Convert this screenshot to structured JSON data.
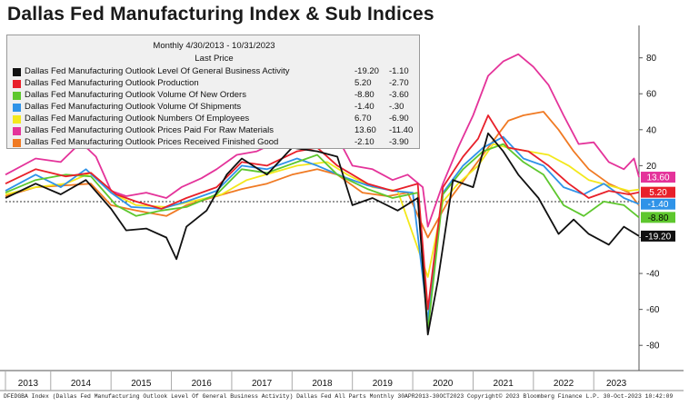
{
  "title": "Dallas Fed Manufacturing Index & Sub Indices",
  "legend": {
    "period": "Monthly 4/30/2013 - 10/31/2023",
    "last_price_label": "Last Price",
    "items": [
      {
        "name": "Dallas Fed Manufacturing Outlook Level Of General Business Activity",
        "v1": "-19.20",
        "v2": "-1.10",
        "color": "#111111"
      },
      {
        "name": "Dallas Fed Manufacturing Outlook Production",
        "v1": "5.20",
        "v2": "-2.70",
        "color": "#e8202a"
      },
      {
        "name": "Dallas Fed Manufacturing Outlook Volume Of New Orders",
        "v1": "-8.80",
        "v2": "-3.60",
        "color": "#5ec72e"
      },
      {
        "name": "Dallas Fed Manufacturing Outlook Volume Of Shipments",
        "v1": "-1.40",
        "v2": "-.30",
        "color": "#2f93e8"
      },
      {
        "name": "Dallas Fed Manufacturing Outlook Numbers Of Employees",
        "v1": "6.70",
        "v2": "-6.90",
        "color": "#f3e81c"
      },
      {
        "name": "Dallas Fed Manufacturing Outlook Prices Paid For Raw Materials",
        "v1": "13.60",
        "v2": "-11.40",
        "color": "#e4339a"
      },
      {
        "name": "Dallas Fed Manufacturing Outlook Prices Received Finished Good",
        "v1": "-2.10",
        "v2": "-3.90",
        "color": "#f07a23"
      }
    ]
  },
  "footer": "DFEDGBA Index (Dallas Fed Manufacturing Outlook Level Of General Business Activity) Dallas Fed All Parts  Monthly 30APR2013-30OCT2023 Copyright© 2023 Bloomberg Finance L.P.  30-Oct-2023 10:42:09",
  "chart_data": {
    "type": "line",
    "title": "Dallas Fed Manufacturing Index & Sub Indices",
    "ylim": [
      -90,
      95
    ],
    "y_ticks": [
      80,
      60,
      40,
      20,
      -20,
      -40,
      -60,
      -80
    ],
    "x_ticks": [
      "2013",
      "2014",
      "2015",
      "2016",
      "2017",
      "2018",
      "2019",
      "2020",
      "2021",
      "2022",
      "2023"
    ],
    "x_start": "2013-04",
    "x_end": "2023-10",
    "reference_line": 0,
    "last_value_tags": [
      {
        "series": "Prices Paid For Raw Materials",
        "value": 13.6,
        "text": "13.60",
        "color": "#e4339a",
        "fg": "#ffffff"
      },
      {
        "series": "Production",
        "value": 5.2,
        "text": "5.20",
        "color": "#e8202a",
        "fg": "#ffffff"
      },
      {
        "series": "Volume Of Shipments",
        "value": -1.4,
        "text": "-1.40",
        "color": "#2f93e8",
        "fg": "#ffffff"
      },
      {
        "series": "Volume Of New Orders",
        "value": -8.8,
        "text": "-8.80",
        "color": "#5ec72e",
        "fg": "#000000"
      },
      {
        "series": "Level Of General Business Activity",
        "value": -19.2,
        "text": "-19.20",
        "color": "#111111",
        "fg": "#ffffff"
      }
    ],
    "series": [
      {
        "name": "Dallas Fed Manufacturing Outlook Prices Paid For Raw Materials",
        "color": "#e4339a",
        "points": [
          [
            "2013-04",
            15
          ],
          [
            "2013-10",
            24
          ],
          [
            "2014-03",
            22
          ],
          [
            "2014-07",
            33
          ],
          [
            "2014-10",
            25
          ],
          [
            "2015-01",
            6
          ],
          [
            "2015-04",
            3
          ],
          [
            "2015-08",
            5
          ],
          [
            "2015-12",
            2
          ],
          [
            "2016-03",
            8
          ],
          [
            "2016-07",
            13
          ],
          [
            "2016-10",
            18
          ],
          [
            "2017-02",
            26
          ],
          [
            "2017-06",
            28
          ],
          [
            "2017-09",
            32
          ],
          [
            "2018-01",
            45
          ],
          [
            "2018-04",
            52
          ],
          [
            "2018-07",
            44
          ],
          [
            "2018-10",
            36
          ],
          [
            "2019-01",
            20
          ],
          [
            "2019-05",
            18
          ],
          [
            "2019-09",
            12
          ],
          [
            "2019-12",
            15
          ],
          [
            "2020-03",
            8
          ],
          [
            "2020-04",
            -14
          ],
          [
            "2020-07",
            10
          ],
          [
            "2020-10",
            30
          ],
          [
            "2021-01",
            48
          ],
          [
            "2021-04",
            70
          ],
          [
            "2021-07",
            78
          ],
          [
            "2021-10",
            82
          ],
          [
            "2022-01",
            75
          ],
          [
            "2022-04",
            65
          ],
          [
            "2022-07",
            48
          ],
          [
            "2022-10",
            32
          ],
          [
            "2023-01",
            33
          ],
          [
            "2023-04",
            22
          ],
          [
            "2023-07",
            18
          ],
          [
            "2023-09",
            24
          ],
          [
            "2023-10",
            13.6
          ]
        ]
      },
      {
        "name": "Dallas Fed Manufacturing Outlook Prices Received Finished Good",
        "color": "#f07a23",
        "points": [
          [
            "2013-04",
            3
          ],
          [
            "2013-10",
            8
          ],
          [
            "2014-04",
            9
          ],
          [
            "2014-09",
            10
          ],
          [
            "2015-01",
            -2
          ],
          [
            "2015-06",
            -5
          ],
          [
            "2015-12",
            -8
          ],
          [
            "2016-04",
            -2
          ],
          [
            "2016-10",
            3
          ],
          [
            "2017-03",
            7
          ],
          [
            "2017-08",
            10
          ],
          [
            "2018-01",
            15
          ],
          [
            "2018-06",
            18
          ],
          [
            "2018-10",
            15
          ],
          [
            "2019-03",
            5
          ],
          [
            "2019-08",
            3
          ],
          [
            "2019-12",
            5
          ],
          [
            "2020-04",
            -20
          ],
          [
            "2020-08",
            0
          ],
          [
            "2020-12",
            15
          ],
          [
            "2021-04",
            30
          ],
          [
            "2021-08",
            45
          ],
          [
            "2021-11",
            48
          ],
          [
            "2022-03",
            50
          ],
          [
            "2022-06",
            40
          ],
          [
            "2022-09",
            28
          ],
          [
            "2022-12",
            18
          ],
          [
            "2023-04",
            10
          ],
          [
            "2023-08",
            5
          ],
          [
            "2023-10",
            -2.1
          ]
        ]
      },
      {
        "name": "Dallas Fed Manufacturing Outlook Numbers Of Employees",
        "color": "#f3e81c",
        "points": [
          [
            "2013-04",
            4
          ],
          [
            "2013-10",
            8
          ],
          [
            "2014-04",
            10
          ],
          [
            "2014-09",
            16
          ],
          [
            "2015-01",
            5
          ],
          [
            "2015-06",
            -2
          ],
          [
            "2015-12",
            -3
          ],
          [
            "2016-05",
            0
          ],
          [
            "2016-11",
            4
          ],
          [
            "2017-04",
            12
          ],
          [
            "2017-09",
            16
          ],
          [
            "2018-02",
            20
          ],
          [
            "2018-08",
            22
          ],
          [
            "2018-12",
            15
          ],
          [
            "2019-05",
            8
          ],
          [
            "2019-10",
            6
          ],
          [
            "2020-04",
            -42
          ],
          [
            "2020-07",
            0
          ],
          [
            "2020-10",
            10
          ],
          [
            "2021-02",
            20
          ],
          [
            "2021-05",
            32
          ],
          [
            "2021-08",
            30
          ],
          [
            "2021-12",
            28
          ],
          [
            "2022-04",
            26
          ],
          [
            "2022-08",
            20
          ],
          [
            "2022-12",
            12
          ],
          [
            "2023-04",
            9
          ],
          [
            "2023-08",
            6
          ],
          [
            "2023-10",
            6.7
          ]
        ]
      },
      {
        "name": "Dallas Fed Manufacturing Outlook Volume Of Shipments",
        "color": "#2f93e8",
        "points": [
          [
            "2013-04",
            6
          ],
          [
            "2013-10",
            15
          ],
          [
            "2014-03",
            8
          ],
          [
            "2014-08",
            18
          ],
          [
            "2015-01",
            5
          ],
          [
            "2015-05",
            -3
          ],
          [
            "2015-11",
            -4
          ],
          [
            "2016-04",
            0
          ],
          [
            "2016-10",
            6
          ],
          [
            "2017-03",
            20
          ],
          [
            "2017-08",
            18
          ],
          [
            "2018-02",
            24
          ],
          [
            "2018-06",
            20
          ],
          [
            "2018-11",
            14
          ],
          [
            "2019-04",
            9
          ],
          [
            "2019-09",
            6
          ],
          [
            "2020-01",
            5
          ],
          [
            "2020-04",
            -66
          ],
          [
            "2020-07",
            5
          ],
          [
            "2020-11",
            20
          ],
          [
            "2021-03",
            30
          ],
          [
            "2021-07",
            36
          ],
          [
            "2021-11",
            24
          ],
          [
            "2022-03",
            20
          ],
          [
            "2022-07",
            8
          ],
          [
            "2022-11",
            4
          ],
          [
            "2023-03",
            10
          ],
          [
            "2023-07",
            2
          ],
          [
            "2023-10",
            -1.4
          ]
        ]
      },
      {
        "name": "Dallas Fed Manufacturing Outlook Volume Of New Orders",
        "color": "#5ec72e",
        "points": [
          [
            "2013-04",
            5
          ],
          [
            "2013-10",
            12
          ],
          [
            "2014-04",
            15
          ],
          [
            "2014-09",
            14
          ],
          [
            "2015-02",
            -2
          ],
          [
            "2015-06",
            -8
          ],
          [
            "2015-11",
            -5
          ],
          [
            "2016-04",
            -3
          ],
          [
            "2016-10",
            4
          ],
          [
            "2017-03",
            18
          ],
          [
            "2017-08",
            16
          ],
          [
            "2018-02",
            22
          ],
          [
            "2018-06",
            26
          ],
          [
            "2018-10",
            15
          ],
          [
            "2019-04",
            7
          ],
          [
            "2019-09",
            2
          ],
          [
            "2020-02",
            5
          ],
          [
            "2020-04",
            -72
          ],
          [
            "2020-07",
            4
          ],
          [
            "2020-11",
            18
          ],
          [
            "2021-03",
            28
          ],
          [
            "2021-07",
            32
          ],
          [
            "2021-11",
            22
          ],
          [
            "2022-03",
            15
          ],
          [
            "2022-07",
            -2
          ],
          [
            "2022-11",
            -8
          ],
          [
            "2023-03",
            0
          ],
          [
            "2023-07",
            -2
          ],
          [
            "2023-10",
            -8.8
          ]
        ]
      },
      {
        "name": "Dallas Fed Manufacturing Outlook Production",
        "color": "#e8202a",
        "points": [
          [
            "2013-04",
            10
          ],
          [
            "2013-10",
            18
          ],
          [
            "2014-04",
            14
          ],
          [
            "2014-09",
            16
          ],
          [
            "2015-02",
            4
          ],
          [
            "2015-06",
            0
          ],
          [
            "2015-11",
            -4
          ],
          [
            "2016-04",
            2
          ],
          [
            "2016-10",
            8
          ],
          [
            "2017-03",
            22
          ],
          [
            "2017-08",
            20
          ],
          [
            "2018-02",
            28
          ],
          [
            "2018-06",
            30
          ],
          [
            "2018-10",
            20
          ],
          [
            "2019-04",
            10
          ],
          [
            "2019-09",
            6
          ],
          [
            "2020-02",
            10
          ],
          [
            "2020-04",
            -60
          ],
          [
            "2020-07",
            8
          ],
          [
            "2020-11",
            25
          ],
          [
            "2021-02",
            35
          ],
          [
            "2021-04",
            48
          ],
          [
            "2021-08",
            30
          ],
          [
            "2021-12",
            28
          ],
          [
            "2022-04",
            20
          ],
          [
            "2022-08",
            10
          ],
          [
            "2022-12",
            2
          ],
          [
            "2023-04",
            6
          ],
          [
            "2023-08",
            4
          ],
          [
            "2023-10",
            5.2
          ]
        ]
      },
      {
        "name": "Dallas Fed Manufacturing Outlook Level Of General Business Activity",
        "color": "#111111",
        "points": [
          [
            "2013-04",
            2
          ],
          [
            "2013-10",
            10
          ],
          [
            "2014-03",
            4
          ],
          [
            "2014-08",
            12
          ],
          [
            "2015-01",
            -4
          ],
          [
            "2015-04",
            -16
          ],
          [
            "2015-08",
            -15
          ],
          [
            "2015-12",
            -20
          ],
          [
            "2016-02",
            -32
          ],
          [
            "2016-04",
            -14
          ],
          [
            "2016-08",
            -5
          ],
          [
            "2016-12",
            15
          ],
          [
            "2017-03",
            24
          ],
          [
            "2017-08",
            15
          ],
          [
            "2018-01",
            30
          ],
          [
            "2018-06",
            28
          ],
          [
            "2018-10",
            25
          ],
          [
            "2019-01",
            -2
          ],
          [
            "2019-05",
            2
          ],
          [
            "2019-10",
            -5
          ],
          [
            "2020-02",
            2
          ],
          [
            "2020-04",
            -74
          ],
          [
            "2020-06",
            -44
          ],
          [
            "2020-09",
            12
          ],
          [
            "2021-01",
            8
          ],
          [
            "2021-04",
            38
          ],
          [
            "2021-07",
            28
          ],
          [
            "2021-10",
            15
          ],
          [
            "2022-02",
            2
          ],
          [
            "2022-06",
            -18
          ],
          [
            "2022-09",
            -10
          ],
          [
            "2022-12",
            -18
          ],
          [
            "2023-04",
            -24
          ],
          [
            "2023-07",
            -14
          ],
          [
            "2023-10",
            -19.2
          ]
        ]
      }
    ]
  }
}
